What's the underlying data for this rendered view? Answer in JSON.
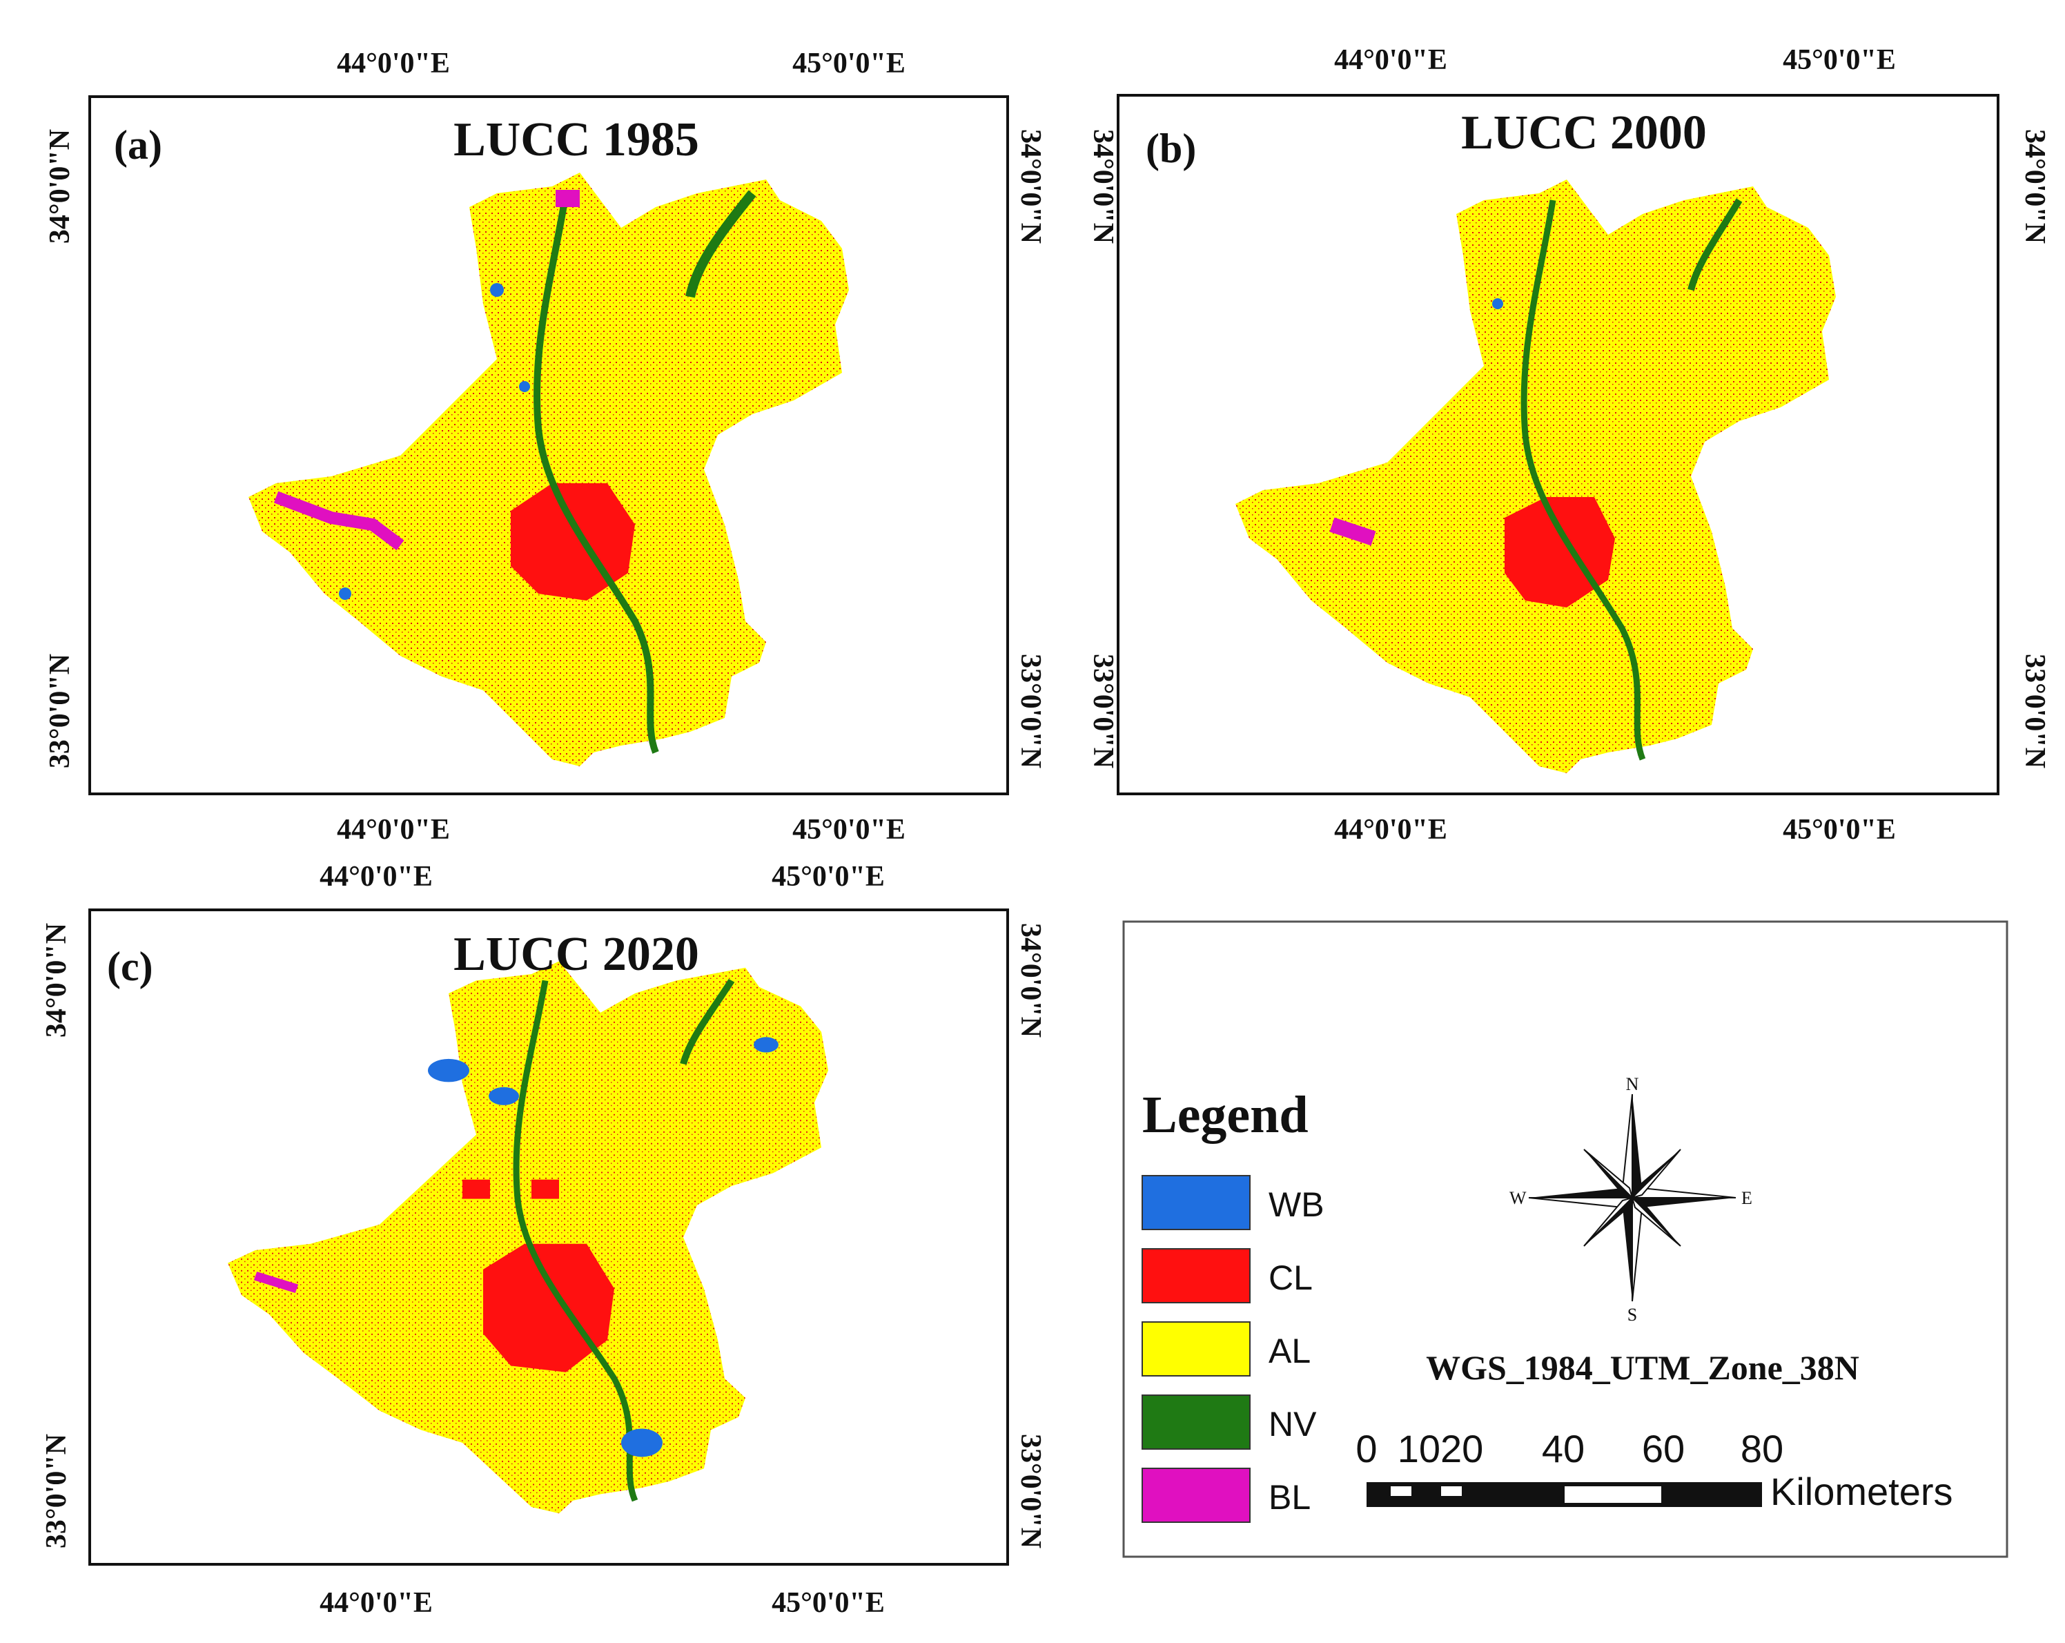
{
  "panels": [
    {
      "label": "(a)",
      "title": "LUCC 1985",
      "lon_left": "44°0'0\"E",
      "lon_right": "45°0'0\"E",
      "lat_top": "34°0'0\"N",
      "lat_bottom": "33°0'0\"N"
    },
    {
      "label": "(b)",
      "title": "LUCC 2000",
      "lon_left": "44°0'0\"E",
      "lon_right": "45°0'0\"E",
      "lat_top": "34°0'0\"N",
      "lat_bottom": "33°0'0\"N"
    },
    {
      "label": "(c)",
      "title": "LUCC 2020",
      "lon_left": "44°0'0\"E",
      "lon_right": "45°0'0\"E",
      "lat_top": "34°0'0\"N",
      "lat_bottom": "33°0'0\"N"
    }
  ],
  "legend": {
    "title": "Legend",
    "items": [
      {
        "code": "WB",
        "color": "#1f6fe0"
      },
      {
        "code": "CL",
        "color": "#ff1010"
      },
      {
        "code": "AL",
        "color": "#ffff00"
      },
      {
        "code": "NV",
        "color": "#1f7a14"
      },
      {
        "code": "BL",
        "color": "#e010c0"
      }
    ]
  },
  "compass": {
    "n": "N",
    "s": "S",
    "e": "E",
    "w": "W"
  },
  "projection": "WGS_1984_UTM_Zone_38N",
  "scale_bar": {
    "ticks": [
      "0",
      "1020",
      "40",
      "60",
      "80"
    ],
    "units": "Kilometers"
  }
}
